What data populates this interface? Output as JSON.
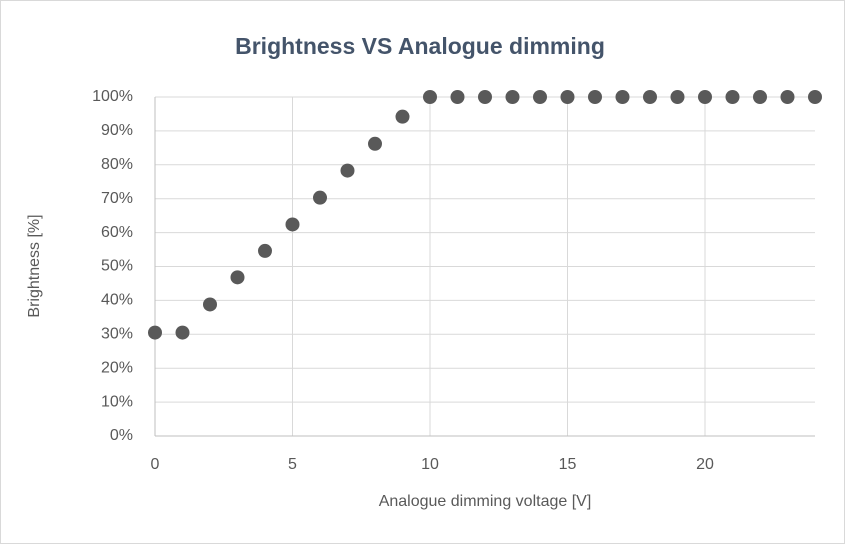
{
  "chart_data": {
    "type": "scatter",
    "title": "Brightness VS Analogue dimming",
    "x_label": "Analogue dimming voltage [V]",
    "y_label": "Brightness [%]",
    "x": [
      0,
      1,
      2,
      3,
      4,
      5,
      6,
      7,
      8,
      9,
      10,
      11,
      12,
      13,
      14,
      15,
      16,
      17,
      18,
      19,
      20,
      21,
      22,
      23,
      24
    ],
    "values": [
      30.5,
      30.5,
      38.8,
      46.8,
      54.6,
      62.4,
      70.3,
      78.3,
      86.2,
      94.2,
      100,
      100,
      100,
      100,
      100,
      100,
      100,
      100,
      100,
      100,
      100,
      100,
      100,
      100,
      100
    ],
    "color": "#595959",
    "xlim": [
      0,
      24
    ],
    "xticks": [
      0,
      5,
      10,
      15,
      20
    ],
    "ylim": [
      0,
      100
    ],
    "yticks": [
      {
        "value": 0,
        "label": "0%"
      },
      {
        "value": 10,
        "label": "10%"
      },
      {
        "value": 20,
        "label": "20%"
      },
      {
        "value": 30,
        "label": "30%"
      },
      {
        "value": 40,
        "label": "40%"
      },
      {
        "value": 50,
        "label": "50%"
      },
      {
        "value": 60,
        "label": "60%"
      },
      {
        "value": 70,
        "label": "70%"
      },
      {
        "value": 80,
        "label": "80%"
      },
      {
        "value": 90,
        "label": "90%"
      },
      {
        "value": 100,
        "label": "100%"
      }
    ],
    "grid": true
  }
}
